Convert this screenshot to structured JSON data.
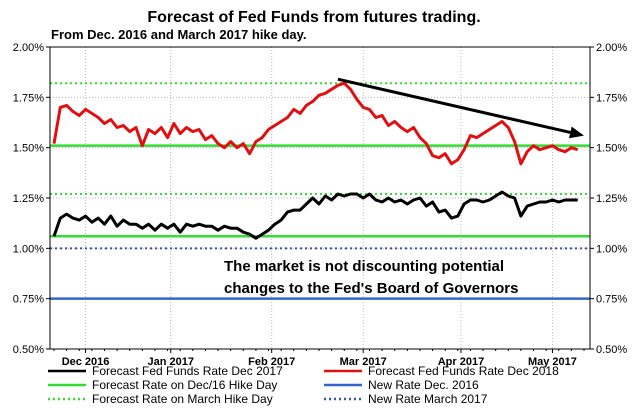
{
  "chart_data": {
    "type": "line",
    "title": "Forecast of Fed Funds from futures trading.",
    "subtitle": "From Dec. 2016 and March 2017 hike day.",
    "ylim": [
      0.5,
      2.0
    ],
    "y_ticks": [
      "0.50%",
      "0.75%",
      "1.00%",
      "1.25%",
      "1.50%",
      "1.75%",
      "2.00%"
    ],
    "y_tick_values": [
      0.5,
      0.75,
      1.0,
      1.25,
      1.5,
      1.75,
      2.0
    ],
    "x_range": [
      0,
      168
    ],
    "x_ticks": [
      {
        "label": "Dec 2016",
        "x": 10
      },
      {
        "label": "Jan 2017",
        "x": 37
      },
      {
        "label": "Feb 2017",
        "x": 69
      },
      {
        "label": "Mar 2017",
        "x": 98
      },
      {
        "label": "Apr 2017",
        "x": 129
      },
      {
        "label": "May 2017",
        "x": 158
      }
    ],
    "grid": true,
    "annotation": {
      "lines": [
        "The market is not discounting potential",
        "changes to the Fed's Board of Governors"
      ],
      "arrow_from": [
        90,
        1.84
      ],
      "arrow_to": [
        168,
        1.56
      ]
    },
    "legend": [
      {
        "label": "Forecast Fed Funds Rate Dec 2017",
        "color": "#000000",
        "style": "solid"
      },
      {
        "label": "Forecast Fed Funds Rate Dec 2018",
        "color": "#e01010",
        "style": "solid"
      },
      {
        "label": "Forecast Rate on Dec/16 Hike Day",
        "color": "#33dd33",
        "style": "solid"
      },
      {
        "label": "New Rate Dec. 2016",
        "color": "#3366cc",
        "style": "solid"
      },
      {
        "label": "Forecast Rate on March Hike Day",
        "color": "#33dd33",
        "style": "dotted"
      },
      {
        "label": "New Rate March 2017",
        "color": "#3355aa",
        "style": "dotted"
      }
    ],
    "legend_placement": "bottom",
    "series": [
      {
        "name": "Forecast Fed Funds Rate Dec 2017",
        "color": "#000000",
        "points": [
          [
            0,
            1.06
          ],
          [
            2,
            1.15
          ],
          [
            4,
            1.17
          ],
          [
            6,
            1.15
          ],
          [
            8,
            1.14
          ],
          [
            10,
            1.16
          ],
          [
            12,
            1.13
          ],
          [
            14,
            1.15
          ],
          [
            16,
            1.12
          ],
          [
            18,
            1.16
          ],
          [
            20,
            1.11
          ],
          [
            22,
            1.14
          ],
          [
            24,
            1.12
          ],
          [
            26,
            1.12
          ],
          [
            28,
            1.1
          ],
          [
            30,
            1.12
          ],
          [
            32,
            1.09
          ],
          [
            34,
            1.12
          ],
          [
            36,
            1.1
          ],
          [
            38,
            1.12
          ],
          [
            40,
            1.08
          ],
          [
            42,
            1.12
          ],
          [
            44,
            1.11
          ],
          [
            46,
            1.12
          ],
          [
            48,
            1.11
          ],
          [
            50,
            1.11
          ],
          [
            52,
            1.09
          ],
          [
            54,
            1.11
          ],
          [
            56,
            1.1
          ],
          [
            58,
            1.1
          ],
          [
            60,
            1.08
          ],
          [
            62,
            1.07
          ],
          [
            64,
            1.05
          ],
          [
            66,
            1.07
          ],
          [
            68,
            1.09
          ],
          [
            70,
            1.12
          ],
          [
            72,
            1.14
          ],
          [
            74,
            1.18
          ],
          [
            76,
            1.19
          ],
          [
            78,
            1.19
          ],
          [
            80,
            1.22
          ],
          [
            82,
            1.25
          ],
          [
            84,
            1.22
          ],
          [
            86,
            1.26
          ],
          [
            88,
            1.24
          ],
          [
            90,
            1.27
          ],
          [
            92,
            1.26
          ],
          [
            94,
            1.27
          ],
          [
            96,
            1.27
          ],
          [
            98,
            1.25
          ],
          [
            100,
            1.27
          ],
          [
            102,
            1.24
          ],
          [
            104,
            1.23
          ],
          [
            106,
            1.25
          ],
          [
            108,
            1.23
          ],
          [
            110,
            1.24
          ],
          [
            112,
            1.22
          ],
          [
            114,
            1.24
          ],
          [
            116,
            1.25
          ],
          [
            118,
            1.21
          ],
          [
            120,
            1.23
          ],
          [
            122,
            1.18
          ],
          [
            124,
            1.19
          ],
          [
            126,
            1.15
          ],
          [
            128,
            1.16
          ],
          [
            130,
            1.22
          ],
          [
            132,
            1.24
          ],
          [
            134,
            1.24
          ],
          [
            136,
            1.23
          ],
          [
            138,
            1.24
          ],
          [
            140,
            1.26
          ],
          [
            142,
            1.28
          ],
          [
            144,
            1.26
          ],
          [
            146,
            1.25
          ],
          [
            148,
            1.16
          ],
          [
            150,
            1.21
          ],
          [
            152,
            1.22
          ],
          [
            154,
            1.23
          ],
          [
            156,
            1.23
          ],
          [
            158,
            1.24
          ],
          [
            160,
            1.23
          ],
          [
            162,
            1.24
          ],
          [
            164,
            1.24
          ],
          [
            166,
            1.24
          ]
        ]
      },
      {
        "name": "Forecast Fed Funds Rate Dec 2018",
        "color": "#e01010",
        "points": [
          [
            0,
            1.52
          ],
          [
            2,
            1.7
          ],
          [
            4,
            1.71
          ],
          [
            6,
            1.68
          ],
          [
            8,
            1.66
          ],
          [
            10,
            1.69
          ],
          [
            12,
            1.67
          ],
          [
            14,
            1.65
          ],
          [
            16,
            1.62
          ],
          [
            18,
            1.64
          ],
          [
            20,
            1.6
          ],
          [
            22,
            1.61
          ],
          [
            24,
            1.58
          ],
          [
            26,
            1.6
          ],
          [
            28,
            1.51
          ],
          [
            30,
            1.59
          ],
          [
            32,
            1.57
          ],
          [
            34,
            1.6
          ],
          [
            36,
            1.55
          ],
          [
            38,
            1.62
          ],
          [
            40,
            1.57
          ],
          [
            42,
            1.6
          ],
          [
            44,
            1.58
          ],
          [
            46,
            1.59
          ],
          [
            48,
            1.54
          ],
          [
            50,
            1.56
          ],
          [
            52,
            1.52
          ],
          [
            54,
            1.5
          ],
          [
            56,
            1.53
          ],
          [
            58,
            1.5
          ],
          [
            60,
            1.52
          ],
          [
            62,
            1.47
          ],
          [
            64,
            1.53
          ],
          [
            66,
            1.55
          ],
          [
            68,
            1.59
          ],
          [
            70,
            1.61
          ],
          [
            72,
            1.63
          ],
          [
            74,
            1.65
          ],
          [
            76,
            1.69
          ],
          [
            78,
            1.67
          ],
          [
            80,
            1.71
          ],
          [
            82,
            1.73
          ],
          [
            84,
            1.76
          ],
          [
            86,
            1.77
          ],
          [
            88,
            1.79
          ],
          [
            90,
            1.81
          ],
          [
            92,
            1.82
          ],
          [
            94,
            1.79
          ],
          [
            96,
            1.74
          ],
          [
            98,
            1.7
          ],
          [
            100,
            1.69
          ],
          [
            102,
            1.65
          ],
          [
            104,
            1.66
          ],
          [
            106,
            1.61
          ],
          [
            108,
            1.63
          ],
          [
            110,
            1.6
          ],
          [
            112,
            1.58
          ],
          [
            114,
            1.6
          ],
          [
            116,
            1.55
          ],
          [
            118,
            1.52
          ],
          [
            120,
            1.46
          ],
          [
            122,
            1.45
          ],
          [
            124,
            1.47
          ],
          [
            126,
            1.42
          ],
          [
            128,
            1.44
          ],
          [
            130,
            1.49
          ],
          [
            132,
            1.56
          ],
          [
            134,
            1.55
          ],
          [
            136,
            1.57
          ],
          [
            138,
            1.59
          ],
          [
            140,
            1.61
          ],
          [
            142,
            1.63
          ],
          [
            144,
            1.6
          ],
          [
            146,
            1.53
          ],
          [
            148,
            1.42
          ],
          [
            150,
            1.48
          ],
          [
            152,
            1.51
          ],
          [
            154,
            1.49
          ],
          [
            156,
            1.5
          ],
          [
            158,
            1.51
          ],
          [
            160,
            1.49
          ],
          [
            162,
            1.48
          ],
          [
            164,
            1.5
          ],
          [
            166,
            1.49
          ]
        ]
      }
    ],
    "reference_lines": [
      {
        "name": "Forecast Rate on Dec/16 Hike Day",
        "value": 1.06,
        "color": "#33dd33",
        "style": "solid"
      },
      {
        "name": "New Rate Dec. 2016",
        "value": 0.75,
        "color": "#3366cc",
        "style": "solid"
      },
      {
        "name": "Forecast Rate on March Hike Day",
        "value": 1.82,
        "color": "#33dd33",
        "style": "dotted"
      },
      {
        "name": "Forecast Rate on March Hike Day",
        "value": 1.51,
        "color": "#33dd33",
        "style": "solid"
      },
      {
        "name": "Forecast Rate on March Hike Day",
        "value": 1.27,
        "color": "#33dd33",
        "style": "dotted"
      },
      {
        "name": "New Rate March 2017",
        "value": 1.0,
        "color": "#3355aa",
        "style": "dotted"
      }
    ]
  }
}
